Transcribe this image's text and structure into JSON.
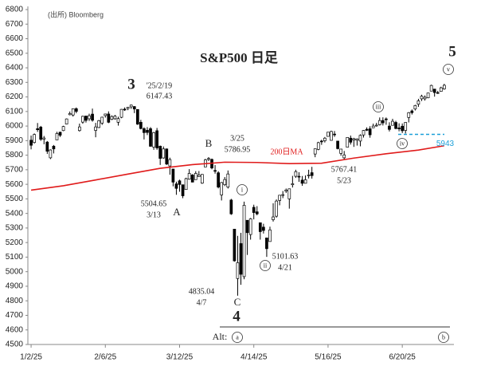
{
  "chart_data": {
    "type": "candlestick",
    "title": "S&P500 日足",
    "source": "(出所) Bloomberg",
    "xlim": [
      -1,
      131
    ],
    "xticks": [
      {
        "value": 0,
        "label": "1/2/25"
      },
      {
        "value": 23,
        "label": "2/6/25"
      },
      {
        "value": 46,
        "label": "3/12/25"
      },
      {
        "value": 69,
        "label": "4/14/25"
      },
      {
        "value": 92,
        "label": "5/16/25"
      },
      {
        "value": 115,
        "label": "6/20/25"
      }
    ],
    "ylim": [
      4500,
      6800
    ],
    "yticks": [
      4500,
      4600,
      4700,
      4800,
      4900,
      5000,
      5100,
      5200,
      5300,
      5400,
      5500,
      5600,
      5700,
      5800,
      5900,
      6000,
      6100,
      6200,
      6300,
      6400,
      6500,
      6600,
      6700,
      6800
    ],
    "up_color": "#ffffff",
    "down_color": "#000000",
    "open": [
      5903,
      5887,
      5982,
      5993,
      5910,
      5890,
      5782,
      5862,
      5905,
      5958,
      5969,
      6014,
      6078,
      6076,
      6119,
      5969,
      6027,
      6069,
      6050,
      6082,
      5970,
      5990,
      6020,
      6072,
      6083,
      6046,
      6050,
      6026,
      6060,
      6116,
      6121,
      6132,
      6134,
      6114,
      6026,
      5982,
      5971,
      5982,
      5856,
      5968,
      5862,
      5781,
      5843,
      5726,
      5705,
      5603,
      5624,
      5597,
      5564,
      5635,
      5664,
      5632,
      5653,
      5608,
      5719,
      5771,
      5771,
      5695,
      5679,
      5527,
      5597,
      5581,
      5492,
      5292,
      4953,
      5193,
      4966,
      5353,
      5255,
      5442,
      5411,
      5336,
      5306,
      5232,
      5207,
      5357,
      5381,
      5489,
      5529,
      5553,
      5500,
      5597,
      5655,
      5655,
      5629,
      5607,
      5663,
      5680,
      5808,
      5840,
      5897,
      5899,
      5929,
      5902,
      5945,
      5897,
      5812,
      5782,
      5855,
      5917,
      5904,
      5903,
      5897,
      5939,
      5978,
      5981,
      5988,
      6005,
      6009,
      6038,
      6049,
      6000,
      6005,
      6025,
      5987,
      5999,
      5970,
      6059,
      6104,
      6117,
      6150,
      6187,
      6187,
      6194,
      6240,
      6254,
      6230,
      6238,
      6255
    ],
    "high": [
      5935,
      5949,
      6021,
      6001,
      5932,
      5897,
      5840,
      5870,
      5961,
      5961,
      6002,
      6052,
      6100,
      6119,
      6128,
      6017,
      6071,
      6070,
      6085,
      6120,
      6022,
      6042,
      6064,
      6084,
      6101,
      6073,
      6076,
      6064,
      6117,
      6128,
      6130,
      6147.43,
      6137,
      6114,
      6043,
      5992,
      5993,
      5993,
      5960,
      5987,
      5866,
      5860,
      5846,
      5783,
      5705,
      5618,
      5632,
      5598,
      5645,
      5704,
      5670,
      5690,
      5691,
      5670,
      5775,
      5786.95,
      5777,
      5732,
      5690,
      5616,
      5650,
      5695,
      5500,
      5292,
      5246,
      5267,
      5481,
      5353,
      5369,
      5460,
      5450,
      5337,
      5329,
      5232,
      5309,
      5470,
      5496,
      5527,
      5554,
      5571,
      5571,
      5658,
      5700,
      5683,
      5657,
      5661,
      5700,
      5720,
      5845,
      5892,
      5906,
      5925,
      5959,
      5968,
      5966,
      5896,
      5842,
      5829,
      5924,
      5935,
      5919,
      5915,
      5943,
      5973,
      5991,
      5999,
      6017,
      6022,
      6059,
      6060,
      6059,
      6026,
      6050,
      6036,
      6019,
      6018,
      6026,
      6096,
      6114,
      6146,
      6187,
      6215,
      6210,
      6228,
      6284,
      6254,
      6242,
      6270,
      6290
    ],
    "low": [
      5840,
      5880,
      5960,
      5898,
      5875,
      5809,
      5773,
      5812,
      5905,
      5925,
      5965,
      6012,
      6074,
      6065,
      6088,
      5962,
      6016,
      6024,
      6035,
      6030,
      5923,
      5986,
      6008,
      6058,
      6020,
      6041,
      6044,
      6003,
      6054,
      6104,
      6109,
      6118,
      6089,
      6008,
      5977,
      5908,
      5938,
      5858,
      5837,
      5837,
      5733,
      5776,
      5733,
      5666,
      5586,
      5528,
      5549,
      5504.65,
      5563,
      5632,
      5614,
      5632,
      5652,
      5603,
      5719,
      5760,
      5703,
      5673,
      5572,
      5489,
      5588,
      5571,
      5390,
      5069,
      4835.04,
      4910,
      4948,
      5115,
      5220,
      5359,
      5387,
      5220,
      5262,
      5101.63,
      5207,
      5344,
      5371,
      5456,
      5505,
      5541,
      5433,
      5578,
      5644,
      5617,
      5590,
      5606,
      5640,
      5639,
      5786,
      5834,
      5871,
      5887,
      5928,
      5900,
      5926,
      5840,
      5796,
      5767.41,
      5855,
      5873,
      5857,
      5866,
      5861,
      5921,
      5966,
      5920,
      5987,
      5996,
      6004,
      6004,
      6009,
      5963,
      6004,
      5978,
      5964,
      5952,
      5949,
      6025,
      6079,
      6107,
      6132,
      6172,
      6175,
      6191,
      6240,
      6202,
      6221,
      6236,
      6250
    ],
    "close": [
      5868,
      5942,
      5975,
      5909,
      5918,
      5827,
      5836,
      5843,
      5949,
      5937,
      5997,
      6049,
      6086,
      6119,
      6101,
      5994,
      6067,
      6039,
      6071,
      6040,
      5994,
      6037,
      6061,
      6083,
      6026,
      6066,
      6068,
      6051,
      6115,
      6114,
      6129,
      6144,
      6117,
      6013,
      5983,
      5955,
      5956,
      5861,
      5955,
      5850,
      5778,
      5843,
      5739,
      5770,
      5615,
      5572,
      5599,
      5521,
      5639,
      5675,
      5615,
      5675,
      5663,
      5668,
      5768,
      5777,
      5712,
      5693,
      5581,
      5612,
      5633,
      5671,
      5397,
      5074,
      5062,
      4982,
      5456,
      5268,
      5363,
      5406,
      5397,
      5275,
      5283,
      5158,
      5287,
      5376,
      5485,
      5525,
      5529,
      5561,
      5569,
      5604,
      5687,
      5650,
      5607,
      5631,
      5664,
      5660,
      5844,
      5886,
      5892,
      5917,
      5958,
      5963,
      5940,
      5845,
      5842,
      5802,
      5922,
      5889,
      5913,
      5912,
      5936,
      5970,
      5971,
      5940,
      6000,
      6006,
      6038,
      6022,
      6045,
      5977,
      6033,
      5983,
      5981,
      5968,
      6025,
      6092,
      6092,
      6141,
      6173,
      6205,
      6198,
      6227,
      6279,
      6230,
      6225,
      6263,
      6280
    ],
    "series": [
      {
        "name": "200日MA",
        "color": "#e01b1b",
        "x": [
          0,
          10,
          20,
          30,
          40,
          50,
          60,
          70,
          80,
          90,
          100,
          110,
          120,
          128
        ],
        "values": [
          5560,
          5590,
          5630,
          5670,
          5710,
          5735,
          5752,
          5750,
          5742,
          5745,
          5780,
          5810,
          5835,
          5865
        ]
      }
    ],
    "level": {
      "value": 5943,
      "label": "5943",
      "color": "#1a9fd8"
    },
    "annotations": [
      "3",
      "'25/2/19",
      "6147.43",
      "5504.65",
      "3/13",
      "A",
      "B",
      "3/25",
      "5786.95",
      "4835.04",
      "4/7",
      "C",
      "4",
      "5101.63",
      "4/21",
      "5767.41",
      "5/23",
      "5",
      "Alt:"
    ],
    "circled_labels": [
      "i",
      "ii",
      "iii",
      "iv",
      "v",
      "a",
      "b"
    ]
  }
}
